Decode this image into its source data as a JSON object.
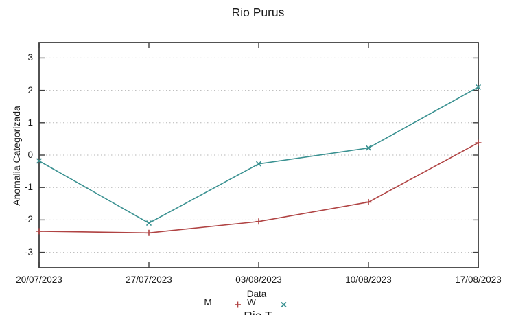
{
  "chart_data": {
    "type": "line",
    "title": "Rio Purus",
    "xlabel": "Data",
    "ylabel": "Anomalia Categorizada",
    "x": [
      "20/07/2023",
      "27/07/2023",
      "03/08/2023",
      "10/08/2023",
      "17/08/2023"
    ],
    "series": [
      {
        "name": "M",
        "color": "#b04343",
        "marker": "plus",
        "values": [
          -2.35,
          -2.4,
          -2.05,
          -1.45,
          0.38
        ]
      },
      {
        "name": "W",
        "color": "#3a9191",
        "marker": "cross",
        "values": [
          -0.18,
          -2.1,
          -0.27,
          0.22,
          2.1
        ]
      }
    ],
    "y_ticks": [
      3,
      2,
      1,
      0,
      -1,
      -2,
      -3
    ],
    "ylim": [
      -3.475,
      3.475
    ],
    "grid": "horizontal-dotted",
    "legend_position": "below-xlabel-center-clipped",
    "colors": {
      "background": "#ffffff",
      "axis": "#3f3f3f",
      "grid": "#b6b6b6",
      "text": "#1b1b1b"
    }
  },
  "bottom_partial": {
    "next_chart_title": "Rio T"
  }
}
